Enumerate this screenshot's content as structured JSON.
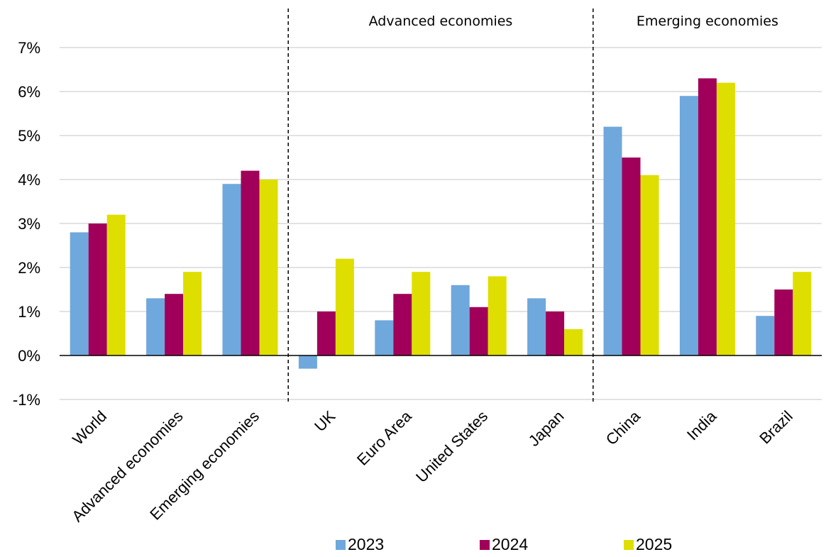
{
  "chart_data": {
    "type": "bar",
    "categories": [
      "World",
      "Advanced economies",
      "Emerging economies",
      "UK",
      "Euro Area",
      "United States",
      "Japan",
      "China",
      "India",
      "Brazil"
    ],
    "series": [
      {
        "name": "2023",
        "color": "#6fa8dc",
        "values": [
          2.8,
          1.3,
          3.9,
          -0.3,
          0.8,
          1.6,
          1.3,
          5.2,
          5.9,
          0.9
        ]
      },
      {
        "name": "2024",
        "color": "#a0005a",
        "values": [
          3.0,
          1.4,
          4.2,
          1.0,
          1.4,
          1.1,
          1.0,
          4.5,
          6.3,
          1.5
        ]
      },
      {
        "name": "2025",
        "color": "#dede00",
        "values": [
          3.2,
          1.9,
          4.0,
          2.2,
          1.9,
          1.8,
          0.6,
          4.1,
          6.2,
          1.9
        ]
      }
    ],
    "ylim": [
      -1,
      7
    ],
    "yticks": [
      "-1%",
      "0%",
      "1%",
      "2%",
      "3%",
      "4%",
      "5%",
      "6%",
      "7%"
    ],
    "grid": true,
    "legend_position": "bottom",
    "groups": [
      {
        "label": "Advanced economies",
        "start_index": 3,
        "end_index": 6
      },
      {
        "label": "Emerging economies",
        "start_index": 7,
        "end_index": 9
      }
    ]
  }
}
